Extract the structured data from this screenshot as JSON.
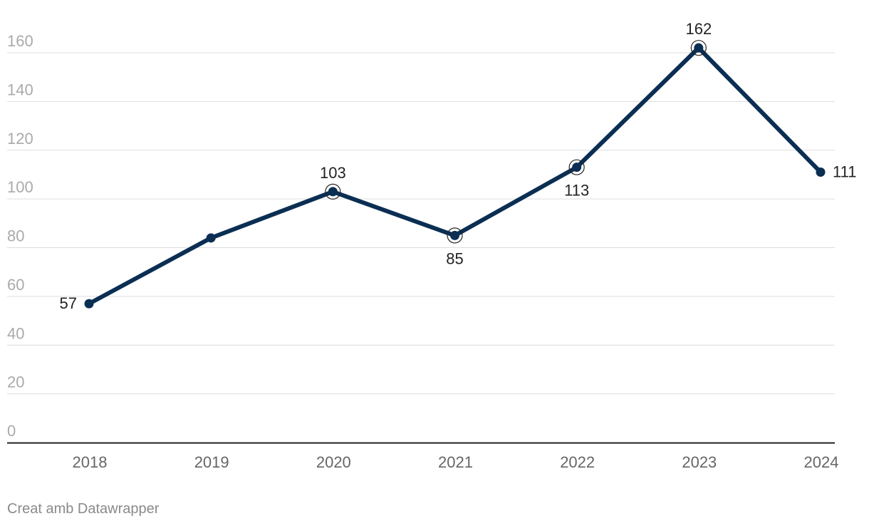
{
  "chart_data": {
    "type": "line",
    "x": [
      "2018",
      "2019",
      "2020",
      "2021",
      "2022",
      "2023",
      "2024"
    ],
    "series": [
      {
        "values": [
          57,
          84,
          103,
          85,
          113,
          162,
          111
        ],
        "color": "#0b2e53"
      }
    ],
    "labeled_points": [
      {
        "x": "2018",
        "label": "57",
        "position": "left"
      },
      {
        "x": "2020",
        "label": "103",
        "position": "above",
        "highlight": true
      },
      {
        "x": "2021",
        "label": "85",
        "position": "below",
        "highlight": true
      },
      {
        "x": "2022",
        "label": "113",
        "position": "below",
        "highlight": true
      },
      {
        "x": "2023",
        "label": "162",
        "position": "above",
        "highlight": true
      },
      {
        "x": "2024",
        "label": "111",
        "position": "right"
      }
    ],
    "yticks": [
      0,
      20,
      40,
      60,
      80,
      100,
      120,
      140,
      160
    ],
    "ylim": [
      0,
      160
    ],
    "grid": true,
    "title": "",
    "xlabel": "",
    "ylabel": ""
  },
  "credit": "Creat amb Datawrapper"
}
